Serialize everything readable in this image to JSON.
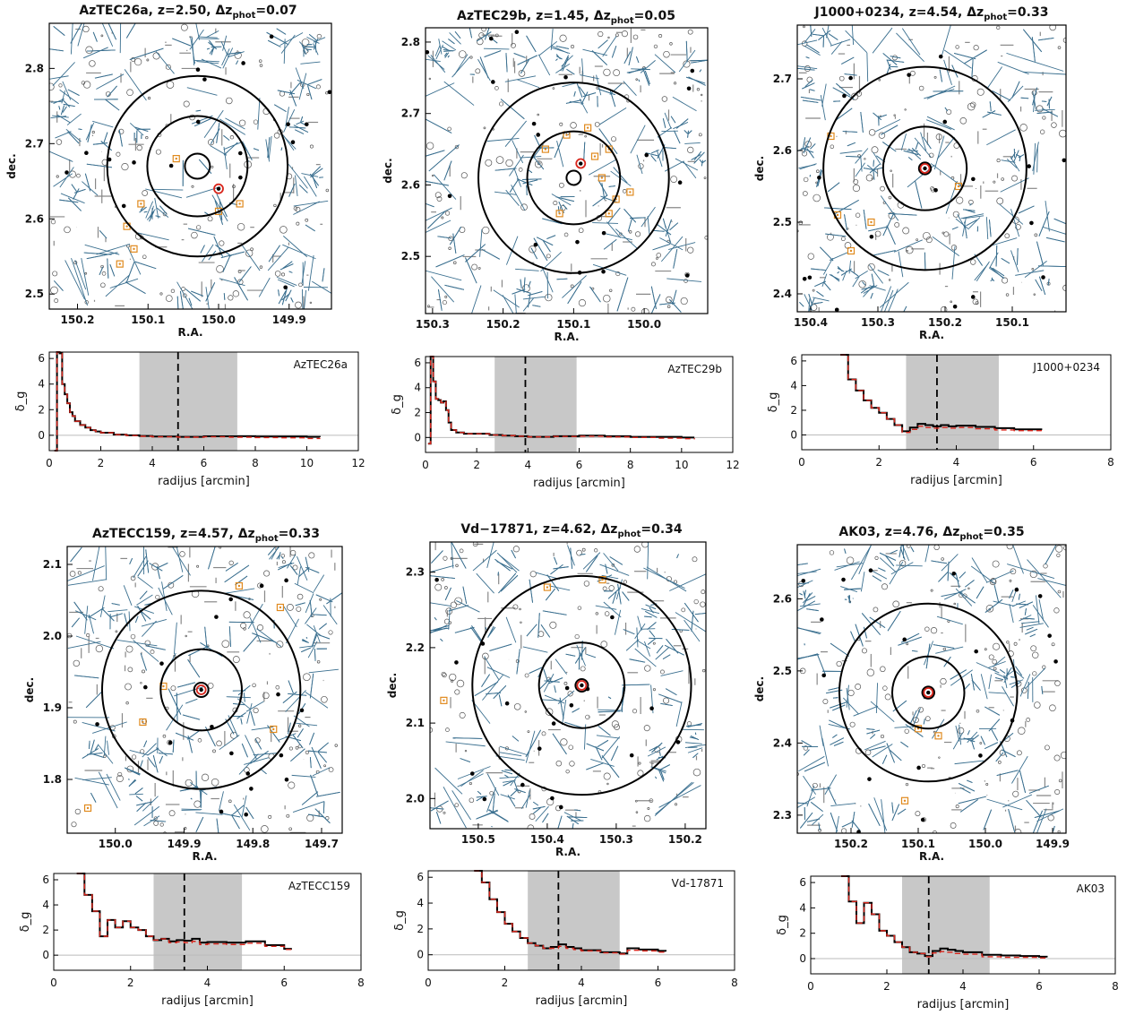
{
  "chart_data": [
    {
      "type": "scatter",
      "panel": "map",
      "title": "AzTEC26a, z=2.50, Δz_phot=0.07",
      "title_parts": [
        "AzTEC26a, z=2.50, Δz",
        "phot",
        "=0.07"
      ],
      "xlabel": "R.A.",
      "ylabel": "dec.",
      "xlim": [
        150.24,
        149.84
      ],
      "ylim": [
        2.48,
        2.86
      ],
      "xticks": [
        "150.2",
        "150.1",
        "150.0",
        "149.9"
      ],
      "yticks": [
        "2.5",
        "2.6",
        "2.7",
        "2.8"
      ],
      "center": [
        150.03,
        2.67
      ],
      "circle_radii_arcmin": [
        1.0,
        4.0,
        7.2
      ],
      "target": [
        150.0,
        2.64
      ],
      "members": [
        [
          150.11,
          2.62
        ],
        [
          150.06,
          2.68
        ],
        [
          150.0,
          2.61
        ],
        [
          150.13,
          2.59
        ],
        [
          150.12,
          2.56
        ],
        [
          149.97,
          2.62
        ],
        [
          150.14,
          2.54
        ]
      ]
    },
    {
      "type": "line",
      "panel": "profile",
      "label": "AzTEC26a",
      "xlabel": "radijus [arcmin]",
      "ylabel": "δ_g",
      "xlim": [
        0,
        12
      ],
      "ylim": [
        -1.2,
        6.5
      ],
      "xticks": [
        "0",
        "2",
        "4",
        "6",
        "8",
        "10",
        "12"
      ],
      "yticks": [
        "0",
        "2",
        "4",
        "6"
      ],
      "band": [
        3.5,
        7.3
      ],
      "dashed_x": 5.0,
      "x": [
        0.2,
        0.3,
        0.4,
        0.5,
        0.6,
        0.7,
        0.8,
        0.9,
        1.0,
        1.2,
        1.4,
        1.6,
        1.8,
        2.0,
        2.5,
        3.0,
        3.5,
        4.0,
        5.0,
        6.0,
        7.0,
        8.0,
        9.0,
        10.0,
        10.5
      ],
      "series": [
        {
          "name": "",
          "values": [
            -1.2,
            6.5,
            6.4,
            4.0,
            3.2,
            2.5,
            1.8,
            1.5,
            1.1,
            0.8,
            0.6,
            0.4,
            0.3,
            0.2,
            0.05,
            0.0,
            -0.05,
            -0.1,
            -0.12,
            -0.08,
            -0.08,
            -0.1,
            -0.1,
            -0.12,
            -0.15
          ]
        },
        {
          "name": "",
          "values": [
            -1.2,
            6.5,
            6.4,
            4.0,
            3.2,
            2.5,
            1.8,
            1.5,
            1.1,
            0.8,
            0.6,
            0.4,
            0.3,
            0.2,
            0.05,
            -0.02,
            -0.08,
            -0.12,
            -0.15,
            -0.12,
            -0.15,
            -0.18,
            -0.2,
            -0.25,
            -0.3
          ]
        }
      ]
    },
    {
      "type": "scatter",
      "panel": "map",
      "title": "AzTEC29b, z=1.45, Δz_phot=0.05",
      "title_parts": [
        "AzTEC29b, z=1.45, Δz",
        "phot",
        "=0.05"
      ],
      "xlabel": "R.A.",
      "ylabel": "dec.",
      "xlim": [
        150.31,
        149.91
      ],
      "ylim": [
        2.42,
        2.82
      ],
      "xticks": [
        "150.3",
        "150.2",
        "150.1",
        "150.0"
      ],
      "yticks": [
        "2.5",
        "2.6",
        "2.7",
        "2.8"
      ],
      "center": [
        150.1,
        2.61
      ],
      "circle_radii_arcmin": [
        0.6,
        3.9,
        8.0
      ],
      "target": [
        150.09,
        2.63
      ],
      "members": [
        [
          150.14,
          2.65
        ],
        [
          150.07,
          2.64
        ],
        [
          150.05,
          2.65
        ],
        [
          150.08,
          2.68
        ],
        [
          150.04,
          2.58
        ],
        [
          150.12,
          2.56
        ],
        [
          150.05,
          2.56
        ],
        [
          150.11,
          2.67
        ],
        [
          150.02,
          2.59
        ],
        [
          150.06,
          2.61
        ]
      ]
    },
    {
      "type": "line",
      "panel": "profile",
      "label": "AzTEC29b",
      "xlabel": "radijus [arcmin]",
      "ylabel": "δ_g",
      "xlim": [
        0,
        12
      ],
      "ylim": [
        -1.2,
        6.5
      ],
      "xticks": [
        "0",
        "2",
        "4",
        "6",
        "8",
        "10",
        "12"
      ],
      "yticks": [
        "0",
        "2",
        "4",
        "6"
      ],
      "band": [
        2.7,
        5.9
      ],
      "dashed_x": 3.9,
      "x": [
        0.1,
        0.2,
        0.3,
        0.4,
        0.5,
        0.6,
        0.7,
        0.8,
        0.9,
        1.0,
        1.2,
        1.5,
        2.0,
        2.5,
        3.0,
        3.5,
        4.0,
        5.0,
        6.0,
        7.0,
        8.0,
        9.0,
        10.0,
        10.5
      ],
      "series": [
        {
          "name": "",
          "values": [
            -0.5,
            6.5,
            4.5,
            3.1,
            3.0,
            2.8,
            2.9,
            2.2,
            1.2,
            0.6,
            0.4,
            0.3,
            0.3,
            0.2,
            0.15,
            0.1,
            0.05,
            0.1,
            0.15,
            0.1,
            0.05,
            0.05,
            0.0,
            0.0
          ]
        },
        {
          "name": "",
          "values": [
            -0.5,
            6.5,
            4.5,
            3.1,
            3.0,
            2.8,
            2.9,
            2.2,
            1.2,
            0.6,
            0.4,
            0.3,
            0.3,
            0.2,
            0.15,
            0.1,
            0.05,
            0.08,
            0.1,
            0.05,
            0.0,
            -0.05,
            -0.1,
            -0.15
          ]
        }
      ]
    },
    {
      "type": "scatter",
      "panel": "map",
      "title": "J1000+0234, z=4.54, Δz_phot=0.33",
      "title_parts": [
        "J1000+0234, z=4.54, Δz",
        "phot",
        "=0.33"
      ],
      "xlabel": "R.A.",
      "ylabel": "dec.",
      "xlim": [
        150.42,
        150.02
      ],
      "ylim": [
        2.375,
        2.775
      ],
      "xticks": [
        "150.4",
        "150.3",
        "150.2",
        "150.1"
      ],
      "yticks": [
        "2.4",
        "2.5",
        "2.6",
        "2.7"
      ],
      "center": [
        150.23,
        2.575
      ],
      "circle_radii_arcmin": [
        0.5,
        3.5,
        8.5
      ],
      "target": [
        150.23,
        2.575
      ],
      "members": [
        [
          150.36,
          2.51
        ],
        [
          150.34,
          2.46
        ],
        [
          150.31,
          2.5
        ],
        [
          150.37,
          2.62
        ],
        [
          150.18,
          2.55
        ]
      ]
    },
    {
      "type": "line",
      "panel": "profile",
      "label": "J1000+0234",
      "xlabel": "radijus [arcmin]",
      "ylabel": "δ_g",
      "xlim": [
        0,
        8
      ],
      "ylim": [
        -1.2,
        6.5
      ],
      "xticks": [
        "0",
        "2",
        "4",
        "6",
        "8"
      ],
      "yticks": [
        "0",
        "2",
        "4",
        "6"
      ],
      "band": [
        2.7,
        5.1
      ],
      "dashed_x": 3.5,
      "x": [
        1.0,
        1.2,
        1.4,
        1.6,
        1.8,
        2.0,
        2.2,
        2.4,
        2.6,
        2.8,
        3.0,
        3.2,
        3.4,
        3.6,
        3.8,
        4.0,
        4.5,
        5.0,
        5.5,
        6.0,
        6.2
      ],
      "series": [
        {
          "name": "",
          "values": [
            6.5,
            4.5,
            3.6,
            2.8,
            2.2,
            1.8,
            1.3,
            0.8,
            0.3,
            0.6,
            0.9,
            0.8,
            0.7,
            0.8,
            0.7,
            0.75,
            0.65,
            0.55,
            0.45,
            0.45,
            0.4
          ]
        },
        {
          "name": "",
          "values": [
            6.5,
            4.5,
            3.6,
            2.8,
            2.2,
            1.8,
            1.3,
            0.8,
            0.2,
            0.45,
            0.7,
            0.6,
            0.55,
            0.6,
            0.55,
            0.6,
            0.5,
            0.4,
            0.35,
            0.35,
            0.3
          ]
        }
      ]
    },
    {
      "type": "scatter",
      "panel": "map",
      "title": "AzTECC159, z=4.57, Δz_phot=0.33",
      "title_parts": [
        "AzTECC159, z=4.57, Δz",
        "phot",
        "=0.33"
      ],
      "xlabel": "R.A.",
      "ylabel": "dec.",
      "xlim": [
        150.07,
        149.67
      ],
      "ylim": [
        1.725,
        2.125
      ],
      "xticks": [
        "150.0",
        "149.9",
        "149.8",
        "149.7"
      ],
      "yticks": [
        "1.8",
        "1.9",
        "2.0",
        "2.1"
      ],
      "center": [
        149.875,
        1.925
      ],
      "circle_radii_arcmin": [
        0.6,
        3.4,
        8.3
      ],
      "target": [
        149.875,
        1.925
      ],
      "members": [
        [
          149.82,
          2.07
        ],
        [
          149.76,
          2.04
        ],
        [
          149.77,
          1.87
        ],
        [
          149.96,
          1.88
        ],
        [
          149.93,
          1.93
        ],
        [
          150.04,
          1.76
        ]
      ]
    },
    {
      "type": "line",
      "panel": "profile",
      "label": "AzTECC159",
      "xlabel": "radijus [arcmin]",
      "ylabel": "δ_g",
      "xlim": [
        0,
        8
      ],
      "ylim": [
        -1.2,
        6.5
      ],
      "xticks": [
        "0",
        "2",
        "4",
        "6",
        "8"
      ],
      "yticks": [
        "0",
        "2",
        "4",
        "6"
      ],
      "band": [
        2.6,
        4.9
      ],
      "dashed_x": 3.4,
      "x": [
        0.6,
        0.8,
        1.0,
        1.2,
        1.4,
        1.6,
        1.8,
        2.0,
        2.2,
        2.4,
        2.6,
        2.8,
        3.0,
        3.2,
        3.4,
        3.6,
        3.8,
        4.0,
        4.5,
        5.0,
        5.5,
        6.0,
        6.2
      ],
      "series": [
        {
          "name": "",
          "values": [
            6.5,
            4.8,
            3.5,
            1.5,
            2.8,
            2.2,
            2.7,
            2.2,
            2.0,
            1.5,
            1.2,
            1.3,
            1.1,
            1.2,
            1.15,
            1.3,
            1.0,
            1.05,
            1.0,
            1.1,
            0.8,
            0.5,
            0.5
          ]
        },
        {
          "name": "",
          "values": [
            6.5,
            4.8,
            3.5,
            1.5,
            2.8,
            2.2,
            2.7,
            2.2,
            2.0,
            1.5,
            1.2,
            1.3,
            1.0,
            1.05,
            1.0,
            1.1,
            0.85,
            0.9,
            0.85,
            0.95,
            0.7,
            0.45,
            0.45
          ]
        }
      ]
    },
    {
      "type": "scatter",
      "panel": "map",
      "title": "Vd-17871, z=4.62, Δz_phot=0.34",
      "title_parts": [
        "Vd−17871, z=4.62, Δz",
        "phot",
        "=0.34"
      ],
      "xlabel": "R.A.",
      "ylabel": "dec.",
      "xlim": [
        150.57,
        150.17
      ],
      "ylim": [
        1.96,
        2.34
      ],
      "xticks": [
        "150.5",
        "150.4",
        "150.3",
        "150.2"
      ],
      "yticks": [
        "2.0",
        "2.1",
        "2.2",
        "2.3"
      ],
      "center": [
        150.35,
        2.15
      ],
      "circle_radii_arcmin": [
        0.5,
        3.4,
        8.7
      ],
      "target": [
        150.35,
        2.15
      ],
      "members": [
        [
          150.4,
          2.28
        ],
        [
          150.32,
          2.29
        ],
        [
          150.55,
          2.13
        ]
      ]
    },
    {
      "type": "line",
      "panel": "profile",
      "label": "Vd-17871",
      "xlabel": "radijus [arcmin]",
      "ylabel": "δ_g",
      "xlim": [
        0,
        8
      ],
      "ylim": [
        -1.2,
        6.5
      ],
      "xticks": [
        "0",
        "2",
        "4",
        "6",
        "8"
      ],
      "yticks": [
        "0",
        "2",
        "4",
        "6"
      ],
      "band": [
        2.6,
        5.0
      ],
      "dashed_x": 3.4,
      "x": [
        1.2,
        1.4,
        1.6,
        1.8,
        2.0,
        2.2,
        2.4,
        2.6,
        2.8,
        3.0,
        3.2,
        3.4,
        3.6,
        3.8,
        4.0,
        4.5,
        5.0,
        5.2,
        5.5,
        6.0,
        6.2
      ],
      "series": [
        {
          "name": "",
          "values": [
            6.5,
            5.6,
            4.3,
            3.3,
            2.4,
            1.8,
            1.3,
            0.9,
            0.7,
            0.5,
            0.6,
            0.8,
            0.6,
            0.5,
            0.35,
            0.2,
            0.1,
            0.5,
            0.4,
            0.3,
            0.25
          ]
        },
        {
          "name": "",
          "values": [
            6.5,
            5.6,
            4.3,
            3.3,
            2.4,
            1.8,
            1.3,
            0.9,
            0.7,
            0.5,
            0.5,
            0.65,
            0.5,
            0.4,
            0.3,
            0.15,
            0.05,
            0.35,
            0.3,
            0.2,
            0.15
          ]
        }
      ]
    },
    {
      "type": "scatter",
      "panel": "map",
      "title": "AK03, z=4.76, Δz_phot=0.35",
      "title_parts": [
        "AK03, z=4.76, Δz",
        "phot",
        "=0.35"
      ],
      "xlabel": "R.A.",
      "ylabel": "dec.",
      "xlim": [
        150.28,
        149.88
      ],
      "ylim": [
        2.275,
        2.675
      ],
      "xticks": [
        "150.2",
        "150.1",
        "150.0",
        "149.9"
      ],
      "yticks": [
        "2.3",
        "2.4",
        "2.5",
        "2.6"
      ],
      "center": [
        150.085,
        2.47
      ],
      "circle_radii_arcmin": [
        0.5,
        3.0,
        7.4
      ],
      "target": [
        150.085,
        2.47
      ],
      "members": [
        [
          150.1,
          2.42
        ],
        [
          150.07,
          2.41
        ],
        [
          150.12,
          2.32
        ]
      ]
    },
    {
      "type": "line",
      "panel": "profile",
      "label": "AK03",
      "xlabel": "radijus [arcmin]",
      "ylabel": "δ_g",
      "xlim": [
        0,
        8
      ],
      "ylim": [
        -1.2,
        6.5
      ],
      "xticks": [
        "0",
        "2",
        "4",
        "6",
        "8"
      ],
      "yticks": [
        "0",
        "2",
        "4",
        "6"
      ],
      "band": [
        2.4,
        4.7
      ],
      "dashed_x": 3.1,
      "x": [
        0.8,
        1.0,
        1.2,
        1.4,
        1.6,
        1.8,
        2.0,
        2.2,
        2.4,
        2.6,
        2.8,
        3.0,
        3.2,
        3.4,
        3.6,
        3.8,
        4.0,
        4.5,
        5.0,
        5.5,
        6.0,
        6.2
      ],
      "series": [
        {
          "name": "",
          "values": [
            6.5,
            4.5,
            2.8,
            4.4,
            3.5,
            2.2,
            1.8,
            1.3,
            0.9,
            0.5,
            0.4,
            0.2,
            0.6,
            0.8,
            0.7,
            0.6,
            0.5,
            0.3,
            0.25,
            0.2,
            0.15,
            0.1
          ]
        },
        {
          "name": "",
          "values": [
            6.5,
            4.5,
            2.8,
            4.4,
            3.5,
            2.2,
            1.8,
            1.3,
            0.9,
            0.5,
            0.4,
            0.15,
            0.45,
            0.55,
            0.5,
            0.4,
            0.35,
            0.15,
            0.1,
            0.1,
            0.05,
            0.0
          ]
        }
      ]
    }
  ]
}
